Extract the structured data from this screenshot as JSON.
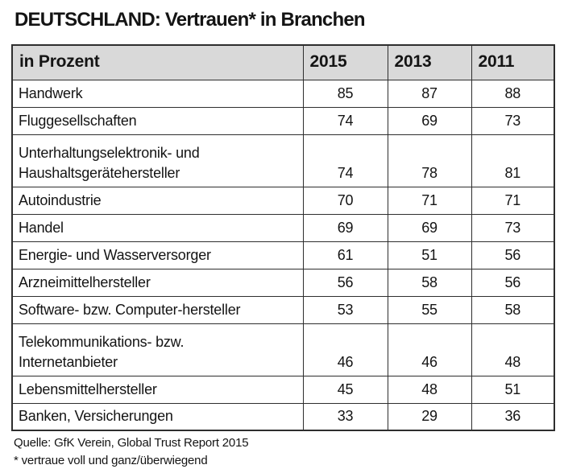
{
  "title": "DEUTSCHLAND: Vertrauen* in Branchen",
  "table": {
    "unit_label": "in Prozent",
    "columns": [
      "2015",
      "2013",
      "2011"
    ],
    "rows": [
      {
        "label": "Handwerk",
        "values": [
          85,
          87,
          88
        ]
      },
      {
        "label": "Fluggesellschaften",
        "values": [
          74,
          69,
          73
        ]
      },
      {
        "label": "Unterhaltungselektronik- und\nHaushaltsgerätehersteller",
        "values": [
          74,
          78,
          81
        ]
      },
      {
        "label": "Autoindustrie",
        "values": [
          70,
          71,
          71
        ]
      },
      {
        "label": "Handel",
        "values": [
          69,
          69,
          73
        ]
      },
      {
        "label": "Energie- und Wasserversorger",
        "values": [
          61,
          51,
          56
        ]
      },
      {
        "label": "Arzneimittelhersteller",
        "values": [
          56,
          58,
          56
        ]
      },
      {
        "label": "Software- bzw. Computer-hersteller",
        "values": [
          53,
          55,
          58
        ]
      },
      {
        "label": "Telekommunikations- bzw.\nInternetanbieter",
        "values": [
          46,
          46,
          48
        ]
      },
      {
        "label": "Lebensmittelhersteller",
        "values": [
          45,
          48,
          51
        ]
      },
      {
        "label": "Banken, Versicherungen",
        "values": [
          33,
          29,
          36
        ]
      }
    ]
  },
  "footer": {
    "source": "Quelle: GfK Verein, Global Trust Report 2015",
    "footnote": "* vertraue voll und ganz/überwiegend"
  },
  "colors": {
    "header_bg": "#d9d9d9",
    "border": "#2e2e2e",
    "text": "#141414",
    "background": "#ffffff"
  },
  "chart_data": {
    "type": "table",
    "title": "DEUTSCHLAND: Vertrauen* in Branchen",
    "unit": "in Prozent",
    "columns": [
      "2015",
      "2013",
      "2011"
    ],
    "categories": [
      "Handwerk",
      "Fluggesellschaften",
      "Unterhaltungselektronik- und Haushaltsgerätehersteller",
      "Autoindustrie",
      "Handel",
      "Energie- und Wasserversorger",
      "Arzneimittelhersteller",
      "Software- bzw. Computer-hersteller",
      "Telekommunikations- bzw. Internetanbieter",
      "Lebensmittelhersteller",
      "Banken, Versicherungen"
    ],
    "series": [
      {
        "name": "2015",
        "values": [
          85,
          74,
          74,
          70,
          69,
          61,
          56,
          53,
          46,
          45,
          33
        ]
      },
      {
        "name": "2013",
        "values": [
          87,
          69,
          78,
          71,
          69,
          51,
          58,
          55,
          46,
          48,
          29
        ]
      },
      {
        "name": "2011",
        "values": [
          88,
          73,
          81,
          71,
          73,
          56,
          56,
          58,
          48,
          51,
          36
        ]
      }
    ],
    "source": "Quelle: GfK Verein, Global Trust Report 2015",
    "footnote": "* vertraue voll und ganz/überwiegend"
  }
}
